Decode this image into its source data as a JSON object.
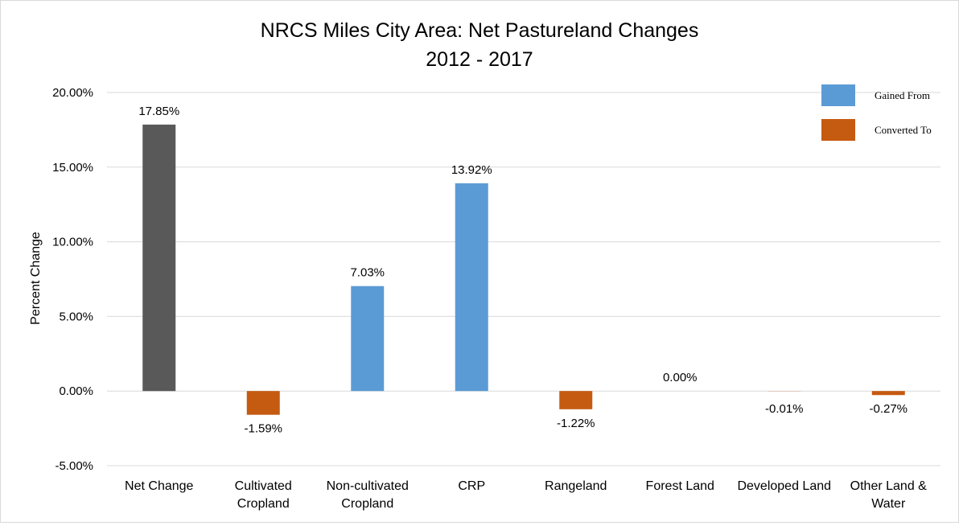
{
  "chart_data": {
    "type": "bar",
    "title": "NRCS Miles City Area: Net Pastureland Changes",
    "subtitle": "2012 - 2017",
    "xlabel": "",
    "ylabel": "Percent Change",
    "ylim": [
      -5,
      20
    ],
    "yticks": [
      -5,
      0,
      5,
      10,
      15,
      20
    ],
    "ytick_labels": [
      "-5.00%",
      "0.00%",
      "5.00%",
      "10.00%",
      "15.00%",
      "20.00%"
    ],
    "grid": true,
    "legend_position": "top-right",
    "categories": [
      [
        "Net Change"
      ],
      [
        "Cultivated",
        "Cropland"
      ],
      [
        "Non-cultivated",
        "Cropland"
      ],
      [
        "CRP"
      ],
      [
        "Rangeland"
      ],
      [
        "Forest Land"
      ],
      [
        "Developed Land"
      ],
      [
        "Other Land &",
        "Water"
      ]
    ],
    "values": [
      17.85,
      -1.59,
      7.03,
      13.92,
      -1.22,
      0.0,
      -0.01,
      -0.27
    ],
    "data_labels": [
      "17.85%",
      "-1.59%",
      "7.03%",
      "13.92%",
      "-1.22%",
      "0.00%",
      "-0.01%",
      "-0.27%"
    ],
    "bar_groups": [
      "net",
      "converted",
      "gained",
      "gained",
      "converted",
      "gained",
      "converted",
      "converted"
    ],
    "legend": [
      {
        "key": "gained",
        "label": "Gained From",
        "color": "#5b9bd5"
      },
      {
        "key": "converted",
        "label": "Converted To",
        "color": "#c55a11"
      }
    ],
    "colors": {
      "net": "#595959",
      "gained": "#5b9bd5",
      "converted": "#c55a11",
      "grid": "#d9d9d9"
    }
  }
}
